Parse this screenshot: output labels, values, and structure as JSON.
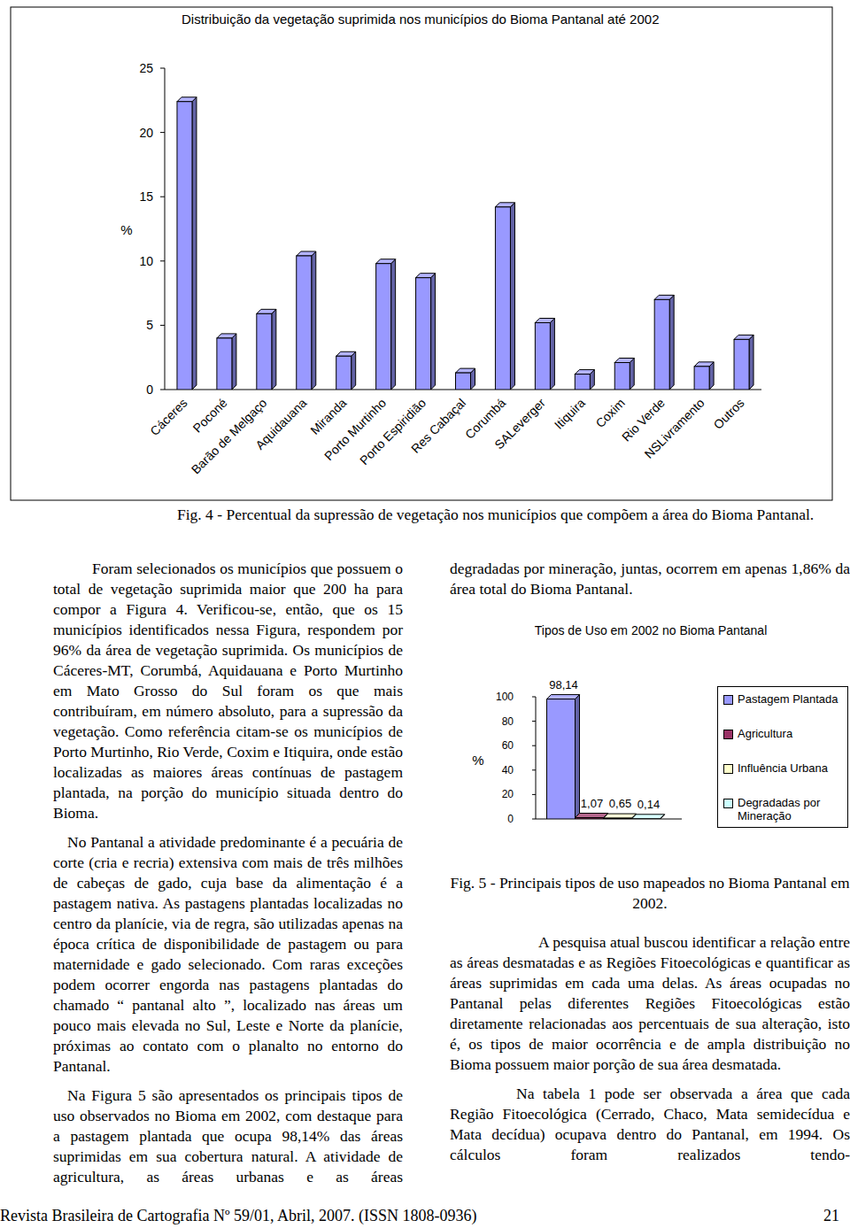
{
  "chart_data": [
    {
      "type": "bar",
      "title": "Distribuição da vegetação suprimida nos municípios do Bioma Pantanal até 2002",
      "ylabel": "%",
      "categories": [
        "Cáceres",
        "Poconé",
        "Barão de Melgaço",
        "Aquidauana",
        "Miranda",
        "Porto Murtinho",
        "Porto Espiridião",
        "Res Cabaçal",
        "Corumbá",
        "SALeverger",
        "Itiquira",
        "Coxim",
        "Rio Verde",
        "NSLivramento",
        "Outros"
      ],
      "values": [
        22.4,
        4.0,
        5.9,
        10.4,
        2.6,
        9.8,
        8.7,
        1.3,
        14.2,
        5.2,
        1.2,
        2.1,
        7.0,
        1.8,
        3.9
      ],
      "color": "#9999ff",
      "ylim": [
        0,
        25
      ],
      "yticks": [
        0,
        5,
        10,
        15,
        20,
        25
      ],
      "grid": false
    },
    {
      "type": "bar",
      "title": "Tipos de Uso em 2002 no Bioma Pantanal",
      "ylabel": "%",
      "categories": [
        null
      ],
      "series": [
        {
          "name": "Pastagem Plantada",
          "color": "#9999ff",
          "values": [
            98.14
          ],
          "value_labels": [
            "98,14"
          ]
        },
        {
          "name": "Agricultura",
          "color": "#993366",
          "values": [
            1.07
          ],
          "value_labels": [
            "1,07"
          ]
        },
        {
          "name": "Influência Urbana",
          "color": "#ffffcc",
          "values": [
            0.65
          ],
          "value_labels": [
            "0,65"
          ]
        },
        {
          "name": "Degradadas por Mineração",
          "color": "#ccffff",
          "values": [
            0.14
          ],
          "value_labels": [
            "0,14"
          ]
        }
      ],
      "ylim": [
        0,
        100
      ],
      "yticks": [
        0,
        20,
        40,
        60,
        80,
        100
      ],
      "data_labels": true,
      "legend": "right",
      "grid": false
    }
  ],
  "document": {
    "fig4_caption": "Fig. 4 - Percentual da supressão de vegetação nos municípios que compõem a área do Bioma Pantanal.",
    "left_column": [
      "Foram selecionados os municípios que possuem o total de vegetação suprimida maior que 200 ha para compor a Figura 4. Verificou-se, então, que os 15 municípios identificados nessa Figura, respondem por 96% da área de vegetação suprimida. Os municípios de Cáceres-MT, Corumbá, Aquidauana e Porto Murtinho em Mato Grosso do Sul foram os que mais contribuíram, em número absoluto, para a supressão da vegetação. Como referência citam-se os municípios de Porto Murtinho, Rio Verde, Coxim e Itiquira, onde estão localizadas as maiores áreas contínuas de pastagem plantada, na porção do município situada dentro do Bioma.",
      "No Pantanal a atividade predominante é a pecuária de corte (cria e recria) extensiva com mais de três milhões de cabeças de gado, cuja base da alimentação é a pastagem nativa. As pastagens plantadas localizadas no centro da planície, via de regra, são utilizadas apenas na época crítica de disponibilidade de pastagem ou para maternidade e gado selecionado. Com raras exceções podem ocorrer engorda nas pastagens plantadas do chamado “ pantanal alto ”, localizado nas áreas um pouco mais elevada no Sul, Leste e Norte da planície, próximas ao contato com o planalto no entorno do Pantanal.",
      "Na Figura 5 são apresentados os principais tipos de uso observados no Bioma em 2002, com destaque para a pastagem plantada que ocupa 98,14% das áreas suprimidas em sua cobertura natural. A atividade de agricultura, as áreas urbanas e as áreas"
    ],
    "right_intro": "degradadas por mineração, juntas, ocorrem em apenas 1,86% da área total do Bioma Pantanal.",
    "fig5_caption": "Fig. 5 - Principais tipos de uso mapeados no Bioma Pantanal em 2002.",
    "right_column": [
      "A pesquisa atual buscou identificar a relação entre as áreas desmatadas e as Regiões Fitoecológicas e quantificar as áreas suprimidas em cada uma delas. As áreas ocupadas no Pantanal pelas diferentes Regiões Fitoecológicas estão diretamente relacionadas aos percentuais de sua alteração, isto é, os tipos de maior ocorrência e de ampla distribuição no Bioma possuem maior porção de sua área desmatada.",
      "Na tabela 1 pode ser observada a área que cada Região Fitoecológica (Cerrado, Chaco, Mata semidecídua e Mata decídua) ocupava dentro do Pantanal, em 1994. Os cálculos foram realizados tendo-"
    ],
    "footer": {
      "journal": "Revista Brasileira de Cartografia Nº 59/01, Abril, 2007. (ISSN 1808-0936)",
      "page": "21"
    }
  }
}
